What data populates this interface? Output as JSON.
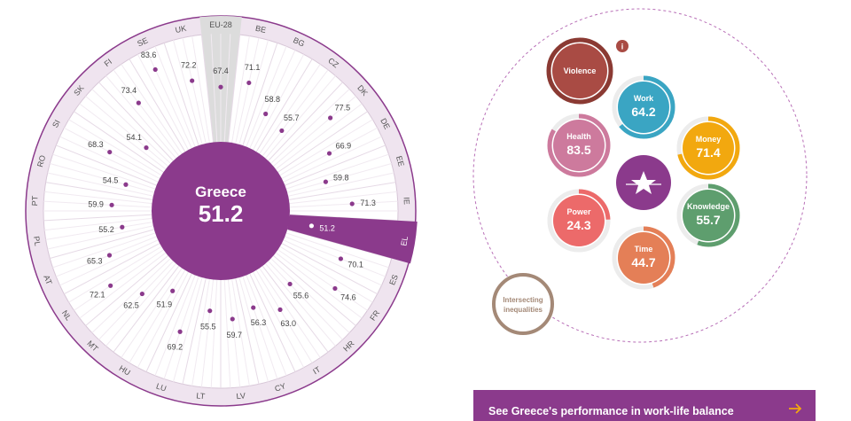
{
  "radial": {
    "center_country": "Greece",
    "center_score": "51.2",
    "countries": [
      {
        "code": "EU-28",
        "value": "67.4",
        "highlight": "eu"
      },
      {
        "code": "BE",
        "value": "71.1"
      },
      {
        "code": "BG",
        "value": "58.8"
      },
      {
        "code": "CZ",
        "value": "55.7"
      },
      {
        "code": "DK",
        "value": "77.5"
      },
      {
        "code": "DE",
        "value": "66.9"
      },
      {
        "code": "EE",
        "value": "59.8"
      },
      {
        "code": "IE",
        "value": "71.3"
      },
      {
        "code": "EL",
        "value": "51.2",
        "highlight": "selected"
      },
      {
        "code": "ES",
        "value": "70.1"
      },
      {
        "code": "FR",
        "value": "74.6"
      },
      {
        "code": "HR",
        "value": "55.6"
      },
      {
        "code": "IT",
        "value": "63.0"
      },
      {
        "code": "CY",
        "value": "56.3"
      },
      {
        "code": "LV",
        "value": "59.7"
      },
      {
        "code": "LT",
        "value": "55.5"
      },
      {
        "code": "LU",
        "value": "69.2"
      },
      {
        "code": "HU",
        "value": "51.9"
      },
      {
        "code": "MT",
        "value": "62.5"
      },
      {
        "code": "NL",
        "value": "72.1"
      },
      {
        "code": "AT",
        "value": "65.3"
      },
      {
        "code": "PL",
        "value": "55.2"
      },
      {
        "code": "PT",
        "value": "59.9"
      },
      {
        "code": "RO",
        "value": "54.5"
      },
      {
        "code": "SI",
        "value": "68.3"
      },
      {
        "code": "SK",
        "value": "54.1"
      },
      {
        "code": "FI",
        "value": "73.4"
      },
      {
        "code": "SE",
        "value": "83.6"
      },
      {
        "code": "UK",
        "value": "72.2"
      }
    ]
  },
  "domains": [
    {
      "key": "violence",
      "label": "Violence",
      "value": "",
      "color": "#a94b44"
    },
    {
      "key": "work",
      "label": "Work",
      "value": "64.2",
      "color": "#3aa5c3"
    },
    {
      "key": "money",
      "label": "Money",
      "value": "71.4",
      "color": "#f2a80f"
    },
    {
      "key": "health",
      "label": "Health",
      "value": "83.5",
      "color": "#cd7a9d"
    },
    {
      "key": "knowledge",
      "label": "Knowledge",
      "value": "55.7",
      "color": "#5e9e6e"
    },
    {
      "key": "power",
      "label": "Power",
      "value": "24.3",
      "color": "#ec6a6a"
    },
    {
      "key": "time",
      "label": "Time",
      "value": "44.7",
      "color": "#e47f57"
    },
    {
      "key": "intersecting",
      "label": "Intersecting inequalities",
      "value": "",
      "color": "#a48977"
    }
  ],
  "info_icon": "i",
  "center_logo": "eige-star-icon",
  "cta": {
    "label": "See Greece's performance in work-life balance",
    "icon": "arrow-right-icon"
  },
  "colors": {
    "accent": "#8b3a8c",
    "ring": "#efe4ef",
    "eu_sector": "#dcdcdc"
  }
}
